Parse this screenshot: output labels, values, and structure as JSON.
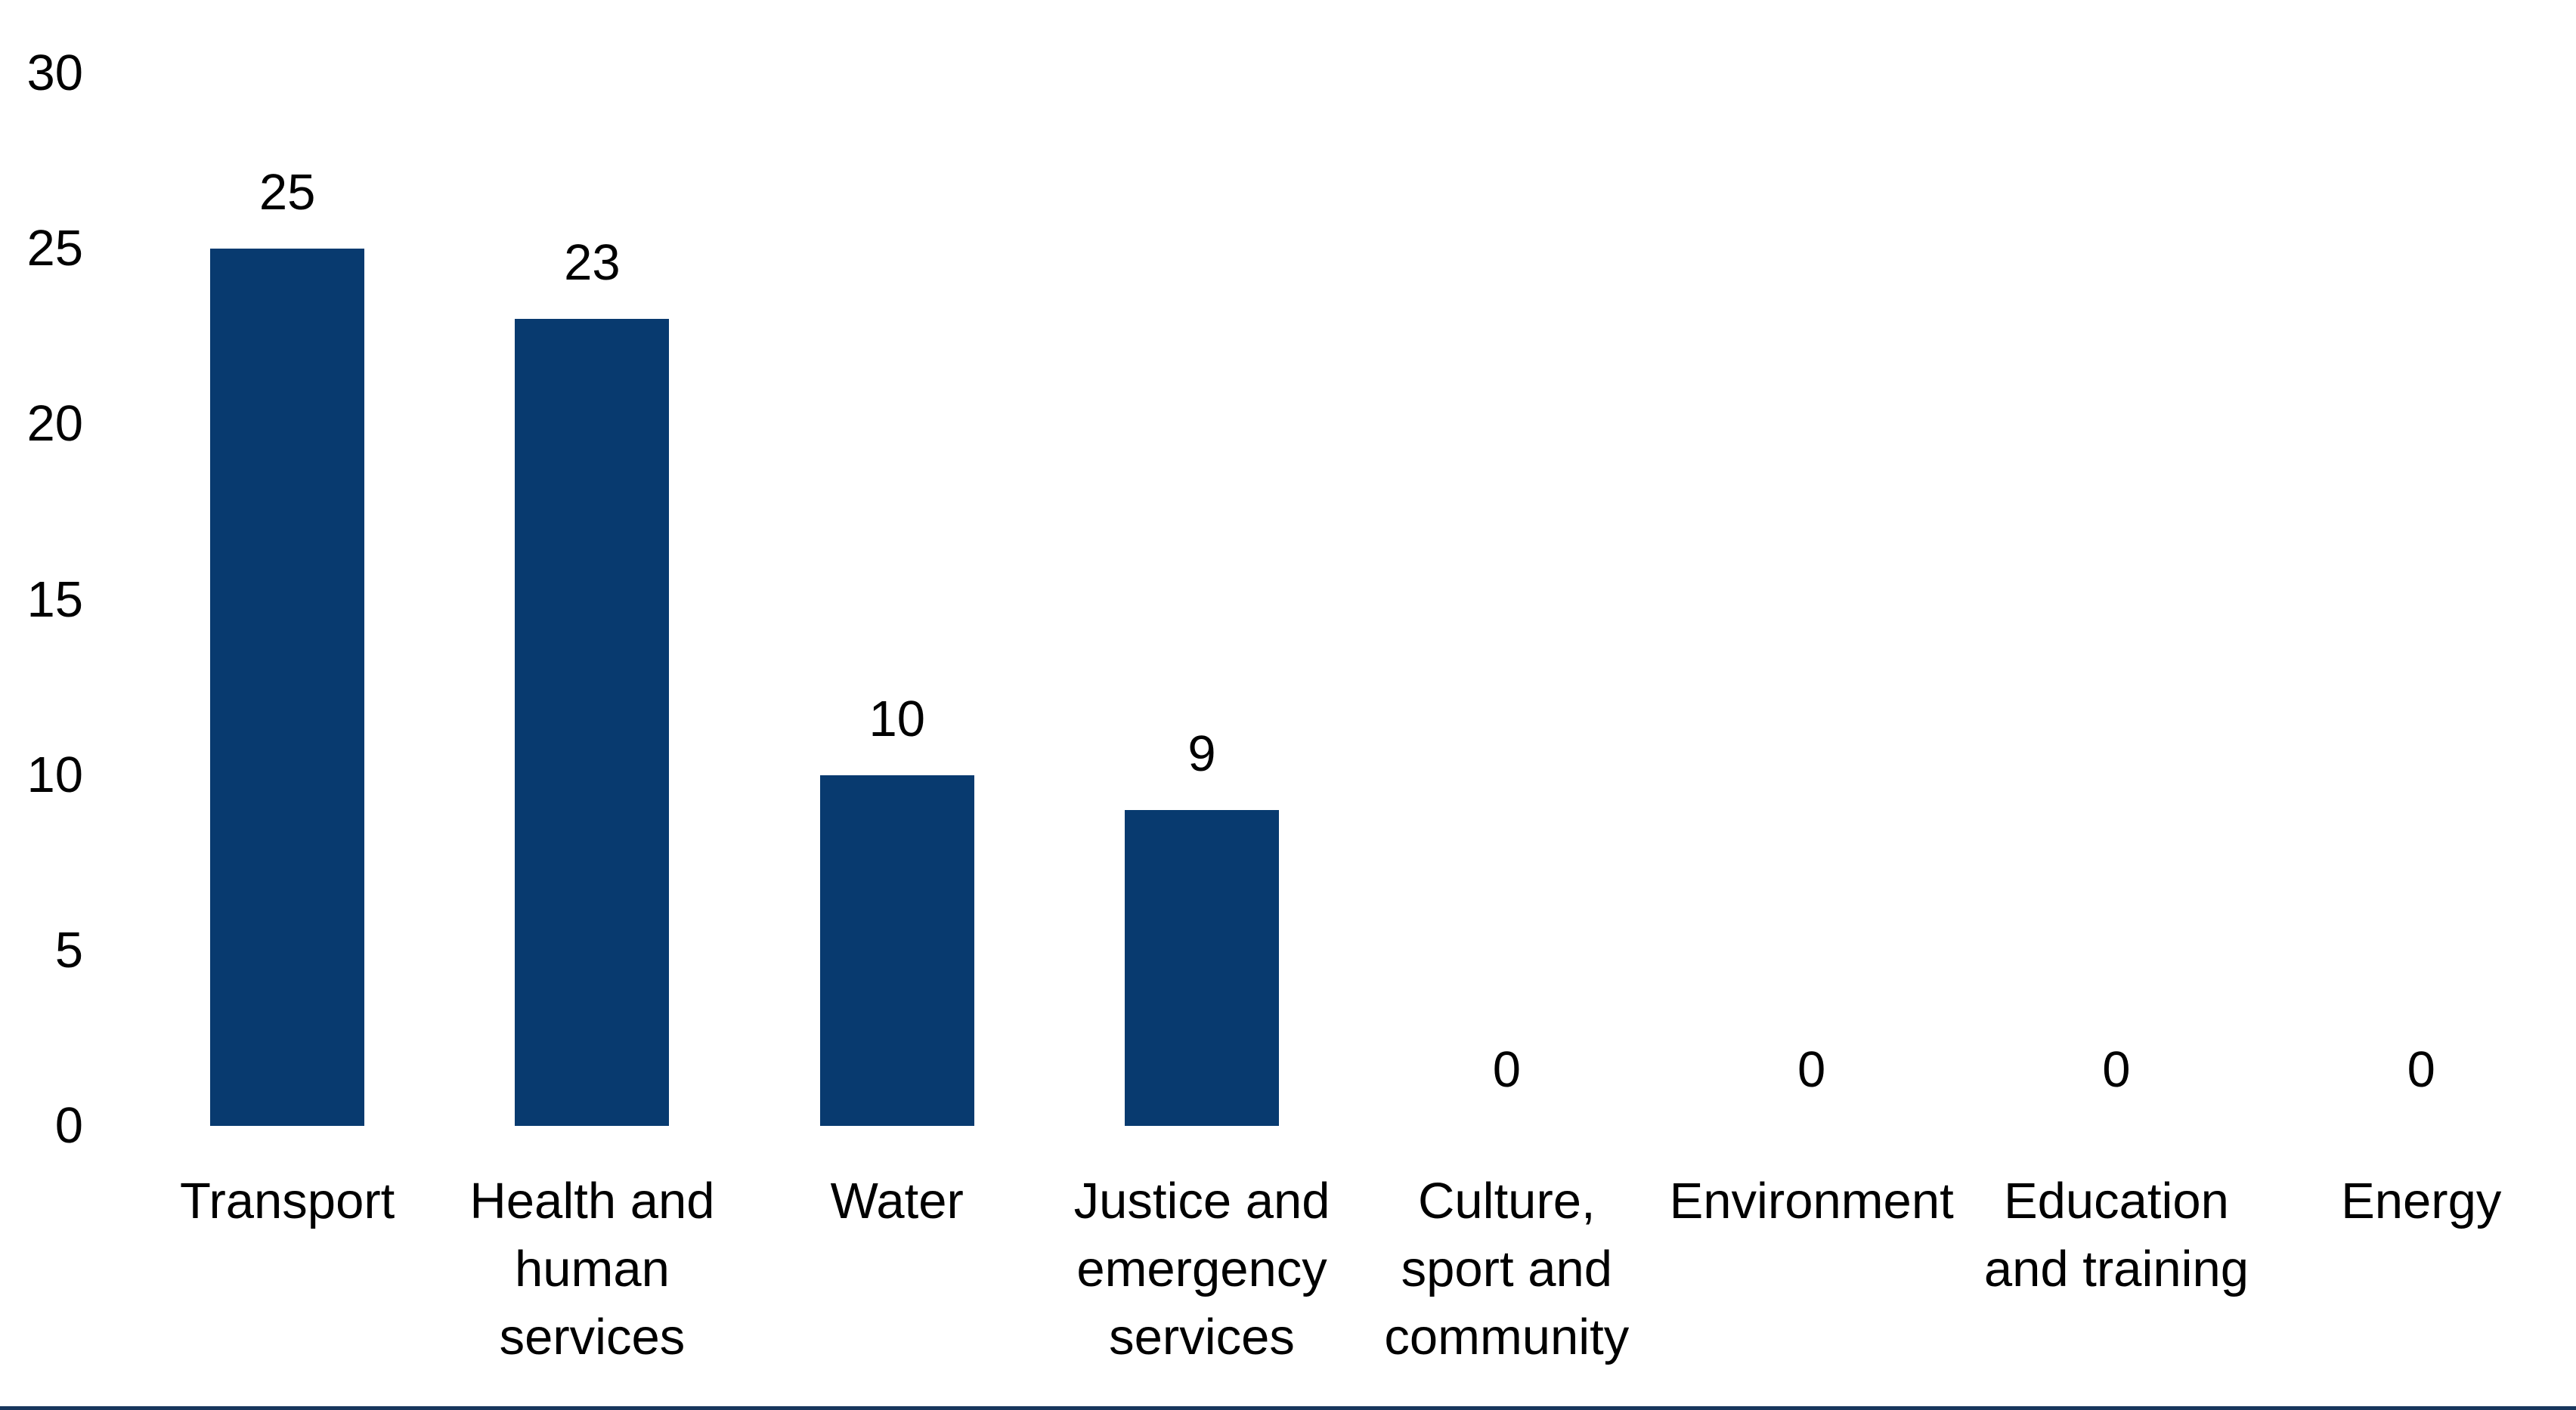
{
  "chart_data": {
    "type": "bar",
    "title": "",
    "xlabel": "",
    "ylabel": "",
    "categories": [
      "Transport",
      "Health and human services",
      "Water",
      "Justice and emergency services",
      "Culture, sport and community",
      "Environment",
      "Education and training",
      "Energy"
    ],
    "category_lines": [
      [
        "Transport"
      ],
      [
        "Health and",
        "human",
        "services"
      ],
      [
        "Water"
      ],
      [
        "Justice and",
        "emergency",
        "services"
      ],
      [
        "Culture,",
        "sport and",
        "community"
      ],
      [
        "Environment"
      ],
      [
        "Education",
        "and training"
      ],
      [
        "Energy"
      ]
    ],
    "values": [
      25,
      23,
      10,
      9,
      0,
      0,
      0,
      0
    ],
    "value_labels": [
      "25",
      "23",
      "10",
      "9",
      "0",
      "0",
      "0",
      "0"
    ],
    "ylim": [
      0,
      30
    ],
    "y_ticks": [
      30,
      25,
      20,
      15,
      10,
      5,
      0
    ],
    "y_tick_labels": [
      "30",
      "25",
      "20",
      "15",
      "10",
      "5",
      "0"
    ],
    "grid": false,
    "legend": false,
    "colors": {
      "bar": "#083A6F",
      "text": "#000000",
      "bottom_rule": "#17365D",
      "background": "#FFFFFF"
    }
  }
}
